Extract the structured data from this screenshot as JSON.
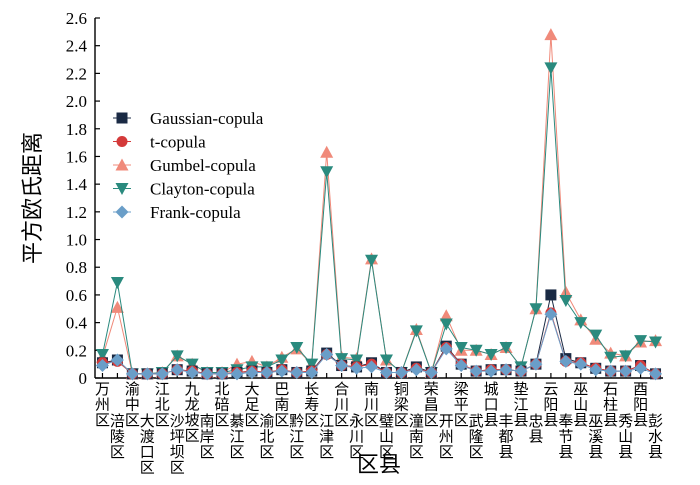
{
  "chart_data": {
    "type": "line",
    "xlabel": "区县",
    "ylabel": "平方欧氏距离",
    "ylim": [
      0,
      2.6
    ],
    "yticks": [
      "0",
      "0.2",
      "0.4",
      "0.6",
      "0.8",
      "1.0",
      "1.2",
      "1.4",
      "1.6",
      "1.8",
      "2.0",
      "2.2",
      "2.4",
      "2.6"
    ],
    "grid": false,
    "legend_position": "upper-left",
    "categories": [
      "万州区",
      "涪陵区",
      "渝中区",
      "大渡口区",
      "江北区",
      "沙坪坝区",
      "九龙坡区",
      "南岸区",
      "北碚区",
      "綦江区",
      "大足区",
      "渝北区",
      "巴南区",
      "黔江区",
      "长寿区",
      "江津区",
      "合川区",
      "永川区",
      "南川区",
      "璧山区",
      "铜梁区",
      "潼南区",
      "荣昌区",
      "开州区",
      "梁平区",
      "武隆区",
      "城口县",
      "丰都县",
      "垫江县",
      "忠县",
      "云阳县",
      "奉节县",
      "巫山县",
      "巫溪县",
      "石柱县",
      "秀山县",
      "酉阳县",
      "彭水县"
    ],
    "series": [
      {
        "name": "Gaussian-copula",
        "color": "#1a2a44",
        "marker": "square",
        "values": [
          0.11,
          0.13,
          0.03,
          0.03,
          0.03,
          0.06,
          0.05,
          0.03,
          0.03,
          0.04,
          0.05,
          0.04,
          0.06,
          0.04,
          0.05,
          0.18,
          0.09,
          0.08,
          0.11,
          0.04,
          0.04,
          0.08,
          0.04,
          0.23,
          0.1,
          0.05,
          0.06,
          0.06,
          0.05,
          0.1,
          0.6,
          0.14,
          0.11,
          0.07,
          0.05,
          0.05,
          0.09,
          0.03
        ]
      },
      {
        "name": "t-copula",
        "color": "#d43a3a",
        "marker": "circle",
        "values": [
          0.11,
          0.12,
          0.03,
          0.03,
          0.03,
          0.06,
          0.05,
          0.03,
          0.03,
          0.04,
          0.05,
          0.04,
          0.06,
          0.04,
          0.05,
          0.17,
          0.09,
          0.08,
          0.1,
          0.04,
          0.04,
          0.07,
          0.04,
          0.22,
          0.1,
          0.05,
          0.06,
          0.06,
          0.05,
          0.1,
          0.47,
          0.12,
          0.11,
          0.07,
          0.05,
          0.05,
          0.09,
          0.03
        ]
      },
      {
        "name": "Gumbel-copula",
        "color": "#f08a7a",
        "marker": "triangle-up",
        "values": [
          0.15,
          0.51,
          0.03,
          0.03,
          0.04,
          0.16,
          0.1,
          0.04,
          0.04,
          0.1,
          0.12,
          0.08,
          0.15,
          0.21,
          0.1,
          1.63,
          0.15,
          0.14,
          0.86,
          0.13,
          0.04,
          0.35,
          0.04,
          0.45,
          0.2,
          0.2,
          0.17,
          0.22,
          0.08,
          0.5,
          2.48,
          0.62,
          0.42,
          0.28,
          0.18,
          0.16,
          0.26,
          0.27
        ]
      },
      {
        "name": "Clayton-copula",
        "color": "#2a8a7e",
        "marker": "triangle-down",
        "values": [
          0.17,
          0.69,
          0.03,
          0.03,
          0.04,
          0.16,
          0.1,
          0.04,
          0.04,
          0.06,
          0.08,
          0.08,
          0.13,
          0.22,
          0.1,
          1.49,
          0.14,
          0.13,
          0.85,
          0.13,
          0.04,
          0.34,
          0.04,
          0.39,
          0.22,
          0.2,
          0.17,
          0.22,
          0.08,
          0.5,
          2.24,
          0.56,
          0.4,
          0.31,
          0.15,
          0.16,
          0.27,
          0.26
        ]
      },
      {
        "name": "Frank-copula",
        "color": "#6a9ec8",
        "marker": "diamond",
        "values": [
          0.09,
          0.13,
          0.03,
          0.03,
          0.03,
          0.06,
          0.04,
          0.03,
          0.03,
          0.03,
          0.04,
          0.04,
          0.05,
          0.04,
          0.04,
          0.17,
          0.09,
          0.07,
          0.08,
          0.04,
          0.04,
          0.06,
          0.04,
          0.21,
          0.09,
          0.05,
          0.05,
          0.06,
          0.05,
          0.1,
          0.46,
          0.12,
          0.1,
          0.06,
          0.05,
          0.05,
          0.07,
          0.03
        ]
      }
    ]
  }
}
